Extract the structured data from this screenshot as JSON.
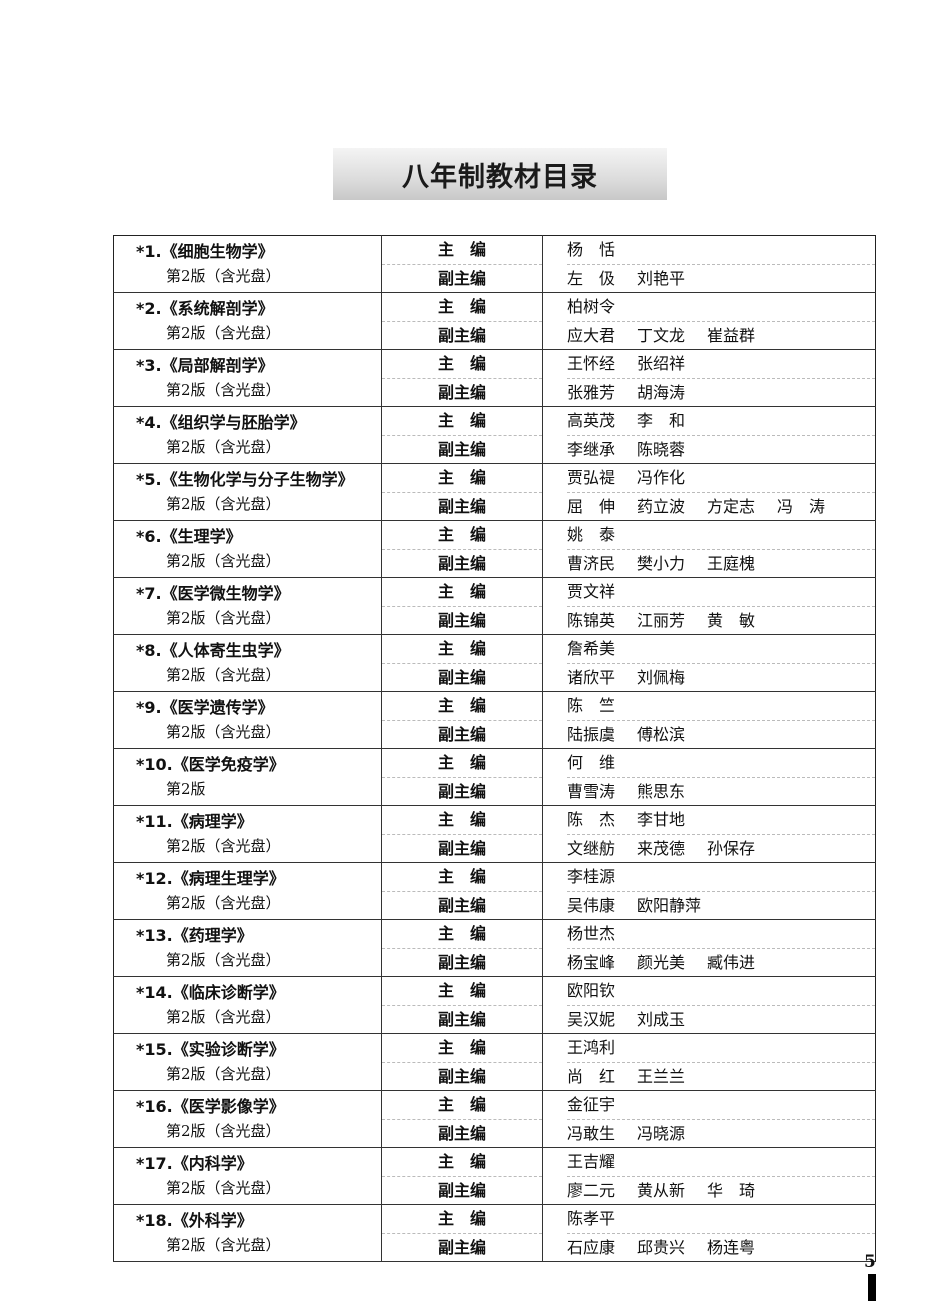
{
  "page_title": "八年制教材目录",
  "page_number": "5",
  "roles": {
    "chief": "主　编",
    "deputy": "副主编"
  },
  "books": [
    {
      "title": "*1.《细胞生物学》",
      "edition": "第2版（含光盘）",
      "chief": [
        "杨　恬"
      ],
      "deputy": [
        "左　伋",
        "刘艳平"
      ]
    },
    {
      "title": "*2.《系统解剖学》",
      "edition": "第2版（含光盘）",
      "chief": [
        "柏树令"
      ],
      "deputy": [
        "应大君",
        "丁文龙",
        "崔益群"
      ]
    },
    {
      "title": "*3.《局部解剖学》",
      "edition": "第2版（含光盘）",
      "chief": [
        "王怀经",
        "张绍祥"
      ],
      "deputy": [
        "张雅芳",
        "胡海涛"
      ]
    },
    {
      "title": "*4.《组织学与胚胎学》",
      "edition": "第2版（含光盘）",
      "chief": [
        "高英茂",
        "李　和"
      ],
      "deputy": [
        "李继承",
        "陈晓蓉"
      ]
    },
    {
      "title": "*5.《生物化学与分子生物学》",
      "edition": "第2版（含光盘）",
      "chief": [
        "贾弘禔",
        "冯作化"
      ],
      "deputy": [
        "屈　伸",
        "药立波",
        "方定志",
        "冯　涛"
      ]
    },
    {
      "title": "*6.《生理学》",
      "edition": "第2版（含光盘）",
      "chief": [
        "姚　泰"
      ],
      "deputy": [
        "曹济民",
        "樊小力",
        "王庭槐"
      ]
    },
    {
      "title": "*7.《医学微生物学》",
      "edition": "第2版（含光盘）",
      "chief": [
        "贾文祥"
      ],
      "deputy": [
        "陈锦英",
        "江丽芳",
        "黄　敏"
      ]
    },
    {
      "title": "*8.《人体寄生虫学》",
      "edition": "第2版（含光盘）",
      "chief": [
        "詹希美"
      ],
      "deputy": [
        "诸欣平",
        "刘佩梅"
      ]
    },
    {
      "title": "*9.《医学遗传学》",
      "edition": "第2版（含光盘）",
      "chief": [
        "陈　竺"
      ],
      "deputy": [
        "陆振虞",
        "傅松滨"
      ]
    },
    {
      "title": "*10.《医学免疫学》",
      "edition": "第2版",
      "chief": [
        "何　维"
      ],
      "deputy": [
        "曹雪涛",
        "熊思东"
      ]
    },
    {
      "title": "*11.《病理学》",
      "edition": "第2版（含光盘）",
      "chief": [
        "陈　杰",
        "李甘地"
      ],
      "deputy": [
        "文继舫",
        "来茂德",
        "孙保存"
      ]
    },
    {
      "title": "*12.《病理生理学》",
      "edition": "第2版（含光盘）",
      "chief": [
        "李桂源"
      ],
      "deputy": [
        "吴伟康",
        "欧阳静萍"
      ]
    },
    {
      "title": "*13.《药理学》",
      "edition": "第2版（含光盘）",
      "chief": [
        "杨世杰"
      ],
      "deputy": [
        "杨宝峰",
        "颜光美",
        "臧伟进"
      ]
    },
    {
      "title": "*14.《临床诊断学》",
      "edition": "第2版（含光盘）",
      "chief": [
        "欧阳钦"
      ],
      "deputy": [
        "吴汉妮",
        "刘成玉"
      ]
    },
    {
      "title": "*15.《实验诊断学》",
      "edition": "第2版（含光盘）",
      "chief": [
        "王鸿利"
      ],
      "deputy": [
        "尚　红",
        "王兰兰"
      ]
    },
    {
      "title": "*16.《医学影像学》",
      "edition": "第2版（含光盘）",
      "chief": [
        "金征宇"
      ],
      "deputy": [
        "冯敢生",
        "冯晓源"
      ]
    },
    {
      "title": "*17.《内科学》",
      "edition": "第2版（含光盘）",
      "chief": [
        "王吉耀"
      ],
      "deputy": [
        "廖二元",
        "黄从新",
        "华　琦"
      ]
    },
    {
      "title": "*18.《外科学》",
      "edition": "第2版（含光盘）",
      "chief": [
        "陈孝平"
      ],
      "deputy": [
        "石应康",
        "邱贵兴",
        "杨连粤"
      ]
    }
  ]
}
